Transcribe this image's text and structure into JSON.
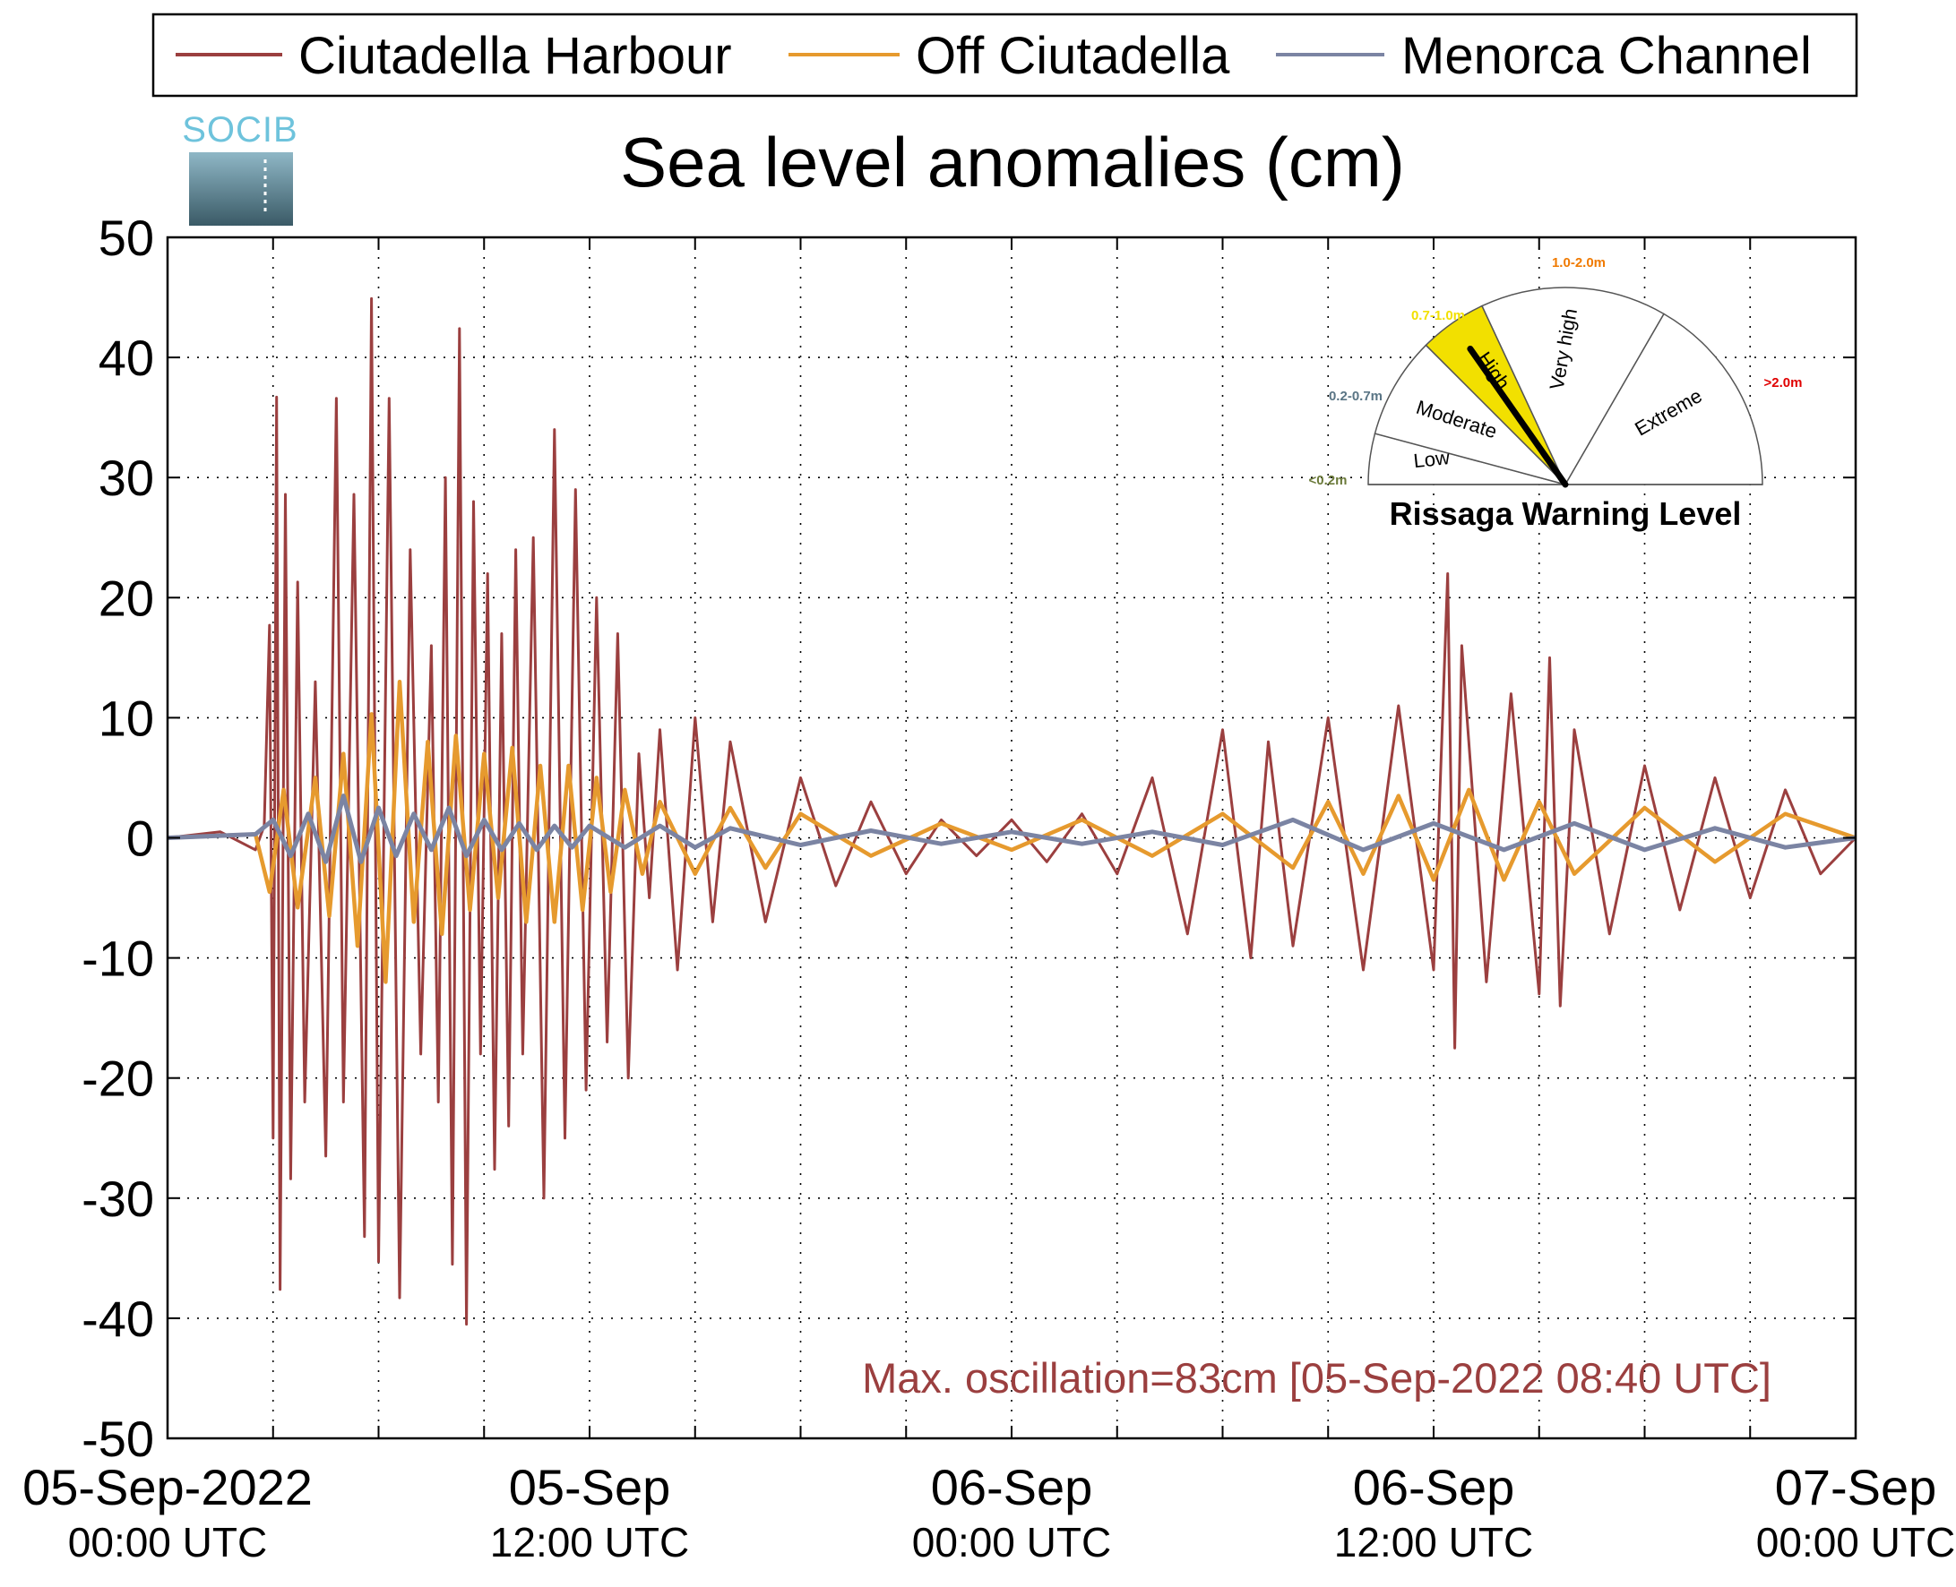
{
  "chart_data": {
    "type": "line",
    "title": "Sea level anomalies (cm)",
    "logo_text": "SOCIB",
    "xlabel": "",
    "ylabel": "",
    "ylim": [
      -50,
      50
    ],
    "yticks": [
      -50,
      -40,
      -30,
      -20,
      -10,
      0,
      10,
      20,
      30,
      40,
      50
    ],
    "xlim_hours": [
      0,
      48
    ],
    "x_tick_hours": [
      0,
      3,
      6,
      9,
      12,
      15,
      18,
      21,
      24,
      27,
      30,
      33,
      36,
      39,
      42,
      45,
      48
    ],
    "x_tick_labels": [
      {
        "hour": 0,
        "line1": "05-Sep-2022",
        "line2": "00:00 UTC"
      },
      {
        "hour": 12,
        "line1": "05-Sep",
        "line2": "12:00 UTC"
      },
      {
        "hour": 24,
        "line1": "06-Sep",
        "line2": "00:00 UTC"
      },
      {
        "hour": 36,
        "line1": "06-Sep",
        "line2": "12:00 UTC"
      },
      {
        "hour": 48,
        "line1": "07-Sep",
        "line2": "00:00 UTC"
      }
    ],
    "grid": true,
    "legend_position": "top",
    "series": [
      {
        "name": "Ciutadella Harbour",
        "color": "#9b3f3f",
        "x_hours": [
          0,
          1.5,
          2.5,
          2.75,
          2.9,
          3.0,
          3.1,
          3.2,
          3.35,
          3.5,
          3.7,
          3.9,
          4.2,
          4.5,
          4.8,
          5.0,
          5.3,
          5.6,
          5.8,
          6.0,
          6.3,
          6.6,
          6.9,
          7.2,
          7.5,
          7.7,
          7.9,
          8.1,
          8.3,
          8.5,
          8.7,
          8.9,
          9.1,
          9.3,
          9.5,
          9.7,
          9.9,
          10.1,
          10.4,
          10.7,
          11.0,
          11.3,
          11.6,
          11.9,
          12.2,
          12.5,
          12.8,
          13.1,
          13.4,
          13.7,
          14.0,
          14.5,
          15.0,
          15.5,
          16.0,
          17.0,
          18.0,
          19.0,
          20.0,
          21.0,
          22.0,
          23.0,
          24.0,
          25.0,
          26.0,
          27.0,
          28.0,
          29.0,
          30.0,
          30.8,
          31.3,
          32.0,
          33.0,
          34.0,
          35.0,
          36.0,
          36.4,
          36.6,
          36.8,
          37.5,
          38.2,
          39.0,
          39.3,
          39.6,
          40.0,
          41.0,
          42.0,
          43.0,
          44.0,
          45.0,
          46.0,
          47.0,
          48.0
        ],
        "values": [
          0,
          0.5,
          -1,
          1,
          17.7,
          -25,
          36.7,
          -37.6,
          28.6,
          -28.4,
          21.3,
          -22,
          13,
          -26.5,
          36.6,
          -22,
          28.6,
          -33.2,
          44.9,
          -35.3,
          36.6,
          -38.3,
          24,
          -18,
          16,
          -22,
          30,
          -35.5,
          42.4,
          -40.5,
          28,
          -18,
          22,
          -27.6,
          17,
          -24,
          24,
          -18,
          25,
          -30,
          34,
          -25,
          29,
          -21,
          20,
          -17,
          17,
          -20,
          7,
          -5,
          9,
          -11,
          10,
          -7,
          8,
          -7,
          5,
          -4,
          3,
          -3,
          1.5,
          -1.5,
          1.5,
          -2,
          2,
          -3,
          5,
          -8,
          9,
          -10,
          8,
          -9,
          10,
          -11,
          11,
          -11,
          22,
          -17.5,
          16,
          -12,
          12,
          -13,
          15,
          -14,
          9,
          -8,
          6,
          -6,
          5,
          -5,
          4,
          -3,
          0
        ]
      },
      {
        "name": "Off Ciutadella",
        "color": "#e69a2e",
        "x_hours": [
          0,
          2.5,
          2.9,
          3.3,
          3.7,
          4.2,
          4.6,
          5.0,
          5.4,
          5.8,
          6.2,
          6.6,
          7.0,
          7.4,
          7.8,
          8.2,
          8.6,
          9.0,
          9.4,
          9.8,
          10.2,
          10.6,
          11.0,
          11.4,
          11.8,
          12.2,
          12.6,
          13.0,
          13.5,
          14.0,
          15.0,
          16.0,
          17.0,
          18.0,
          20.0,
          22.0,
          24.0,
          26.0,
          28.0,
          30.0,
          32.0,
          33.0,
          34.0,
          35.0,
          36.0,
          37.0,
          38.0,
          39.0,
          40.0,
          42.0,
          44.0,
          46.0,
          48.0
        ],
        "values": [
          0,
          0.3,
          -4.5,
          4,
          -5.8,
          5,
          -6.5,
          7,
          -9,
          10.3,
          -12,
          13,
          -7,
          8,
          -8,
          8.5,
          -6,
          7,
          -5,
          7.5,
          -7,
          6,
          -7,
          6,
          -6,
          5,
          -4.5,
          4,
          -3,
          3,
          -3,
          2.5,
          -2.5,
          2,
          -1.5,
          1.2,
          -1,
          1.5,
          -1.5,
          2,
          -2.5,
          3,
          -3,
          3.5,
          -3.5,
          4,
          -3.5,
          3,
          -3,
          2.5,
          -2,
          2,
          0
        ]
      },
      {
        "name": "Menorca Channel",
        "color": "#7b84a3",
        "x_hours": [
          0,
          2.5,
          3.0,
          3.5,
          4.0,
          4.5,
          5.0,
          5.5,
          6.0,
          6.5,
          7.0,
          7.5,
          8.0,
          8.5,
          9.0,
          9.5,
          10.0,
          10.5,
          11.0,
          11.5,
          12.0,
          13.0,
          14.0,
          15.0,
          16.0,
          18.0,
          20.0,
          22.0,
          24.0,
          26.0,
          28.0,
          30.0,
          32.0,
          34.0,
          36.0,
          38.0,
          40.0,
          42.0,
          44.0,
          46.0,
          48.0
        ],
        "values": [
          0,
          0.3,
          1.5,
          -1.5,
          2,
          -2,
          3.5,
          -2,
          2.5,
          -1.5,
          2,
          -1,
          2.5,
          -1.5,
          1.5,
          -1,
          1.2,
          -1,
          1,
          -0.8,
          1,
          -0.8,
          1,
          -0.8,
          0.8,
          -0.6,
          0.6,
          -0.5,
          0.5,
          -0.5,
          0.5,
          -0.6,
          1.5,
          -1,
          1.2,
          -1,
          1.2,
          -1,
          0.8,
          -0.8,
          0
        ]
      }
    ],
    "annotation": "Max. oscillation=83cm [05-Sep-2022 08:40 UTC]",
    "gauge": {
      "title": "Rissaga Warning Level",
      "level": "High",
      "sectors": [
        {
          "label": "Low",
          "range": "<0.2m",
          "range_color": "#6b7a3a"
        },
        {
          "label": "Moderate",
          "range": "0.2-0.7m",
          "range_color": "#5a7585"
        },
        {
          "label": "High",
          "range": "0.7-1.0m",
          "range_color": "#f2e000",
          "fill": "#f2e000"
        },
        {
          "label": "Very high",
          "range": "1.0-2.0m",
          "range_color": "#f07a00"
        },
        {
          "label": "Extreme",
          "range": ">2.0m",
          "range_color": "#e00000"
        }
      ]
    }
  }
}
